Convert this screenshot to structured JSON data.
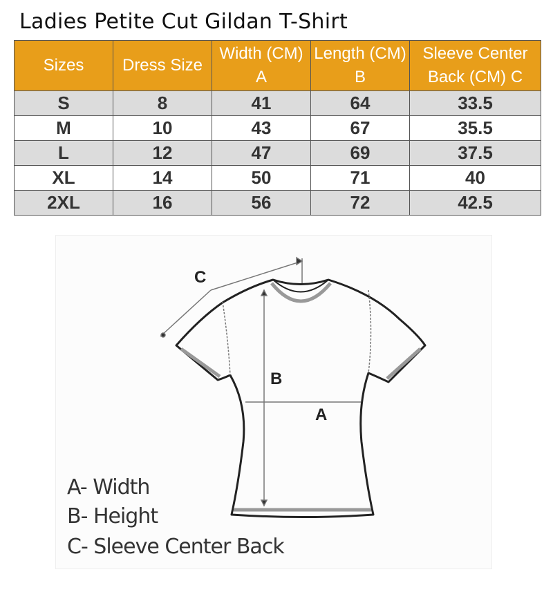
{
  "title": "Ladies Petite Cut Gildan T-Shirt",
  "colors": {
    "header": "#E89E1A",
    "row_shade": "#dcdcdc"
  },
  "table": {
    "headers": [
      "Sizes",
      "Dress Size",
      "Width (CM) A",
      "Length (CM) B",
      "Sleeve Center Back (CM) C"
    ],
    "rows": [
      [
        "S",
        "8",
        "41",
        "64",
        "33.5"
      ],
      [
        "M",
        "10",
        "43",
        "67",
        "35.5"
      ],
      [
        "L",
        "12",
        "47",
        "69",
        "37.5"
      ],
      [
        "XL",
        "14",
        "50",
        "71",
        "40"
      ],
      [
        "2XL",
        "16",
        "56",
        "72",
        "42.5"
      ]
    ]
  },
  "diagram": {
    "labels": {
      "a": "A",
      "b": "B",
      "c": "C"
    },
    "legend": [
      "A- Width",
      "B- Height",
      "C- Sleeve Center Back"
    ]
  }
}
